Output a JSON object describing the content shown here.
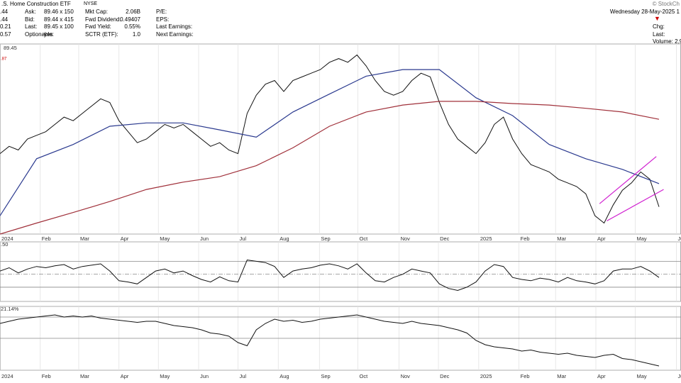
{
  "header": {
    "title": ".S. Home Construction ETF",
    "exchange": "NYSE",
    "copyright": "© StockCh",
    "date": "Wednesday  28-May-2025  1",
    "left_values": [
      ".44",
      ".44",
      "0.21",
      "0.57"
    ],
    "quote": [
      [
        "Ask:",
        "89.46 x 150"
      ],
      [
        "Bid:",
        "89.44 x 415"
      ],
      [
        "Last:",
        "89.45 x 100"
      ],
      [
        "Optionable:",
        "yes"
      ]
    ],
    "stats": [
      [
        "Mkt Cap:",
        "2.06B"
      ],
      [
        "Fwd Dividend:",
        "0.49407"
      ],
      [
        "Fwd Yield:",
        "0.55%"
      ],
      [
        "SCTR (ETF):",
        "1.0"
      ]
    ],
    "earnings": [
      "P/E:",
      "EPS:",
      "Last Earnings:",
      "Next Earnings:"
    ],
    "right": [
      "Chg:",
      "Last:",
      "Volume: 2,9"
    ]
  },
  "chart_data": [
    {
      "type": "line",
      "price_label": "89.45",
      "sub_label": ".87",
      "x": [
        0,
        1,
        2,
        3,
        4,
        5,
        6,
        7,
        8,
        9,
        10,
        11,
        12,
        13,
        14,
        15,
        16,
        17,
        18,
        19,
        20,
        21,
        22,
        23,
        24,
        25,
        26,
        27,
        28,
        29,
        30,
        31,
        32,
        33,
        34,
        35,
        36,
        37,
        38,
        39,
        40,
        41,
        42,
        43,
        44,
        45,
        46,
        47,
        48,
        49,
        50,
        51,
        52,
        53,
        54,
        55,
        56,
        57,
        58,
        59,
        60,
        61,
        62,
        63,
        64,
        65,
        66,
        67,
        68,
        69,
        70,
        71,
        72
      ],
      "xlim": [
        0,
        74.4
      ],
      "ylim": [
        82,
        134
      ],
      "xticks": [
        {
          "value": 0,
          "label": "2024"
        },
        {
          "value": 4.4,
          "label": "Feb"
        },
        {
          "value": 8.6,
          "label": "Mar"
        },
        {
          "value": 13,
          "label": "Apr"
        },
        {
          "value": 17.3,
          "label": "May"
        },
        {
          "value": 21.7,
          "label": "Jun"
        },
        {
          "value": 26,
          "label": "Jul"
        },
        {
          "value": 30.4,
          "label": "Aug"
        },
        {
          "value": 34.9,
          "label": "Sep"
        },
        {
          "value": 39.1,
          "label": "Oct"
        },
        {
          "value": 43.6,
          "label": "Nov"
        },
        {
          "value": 47.9,
          "label": "Dec"
        },
        {
          "value": 52.3,
          "label": "2025"
        },
        {
          "value": 56.7,
          "label": "Feb"
        },
        {
          "value": 60.7,
          "label": "Mar"
        },
        {
          "value": 65.1,
          "label": "Apr"
        },
        {
          "value": 69.4,
          "label": "May"
        },
        {
          "value": 73.9,
          "label": "Jun"
        }
      ],
      "series": [
        {
          "color": "#111111",
          "values": [
            104,
            106,
            105,
            108,
            109,
            110,
            112,
            114,
            113,
            115,
            117,
            119,
            118,
            113,
            110,
            107,
            108,
            110,
            112,
            111,
            112,
            110,
            108,
            106,
            107,
            105,
            104,
            115,
            120,
            123,
            124,
            121,
            124,
            125,
            126,
            127,
            129,
            130,
            129,
            131,
            128,
            124,
            121,
            120,
            121,
            124,
            126,
            125,
            118,
            112,
            108,
            106,
            104,
            107,
            112,
            114,
            108,
            104,
            101,
            100,
            99,
            97,
            96,
            95,
            93,
            87,
            85,
            90,
            94,
            96,
            99,
            97,
            89.45
          ]
        },
        {
          "color": "#2b3a8f",
          "x": [
            0,
            4,
            8,
            12,
            16,
            20,
            24,
            28,
            32,
            36,
            40,
            44,
            48,
            52,
            56,
            60,
            64,
            68,
            72
          ],
          "values": [
            87,
            102.6,
            106.5,
            111.5,
            112.4,
            112.4,
            110.5,
            108.5,
            115.4,
            120.3,
            125.2,
            127,
            127,
            119.3,
            114.4,
            106.5,
            102.6,
            99.7,
            95.8
          ]
        },
        {
          "color": "#a0303a",
          "x": [
            0,
            4,
            8,
            12,
            16,
            20,
            24,
            28,
            32,
            36,
            40,
            44,
            48,
            52,
            56,
            60,
            64,
            68,
            72
          ],
          "values": [
            82,
            85,
            87.9,
            90.9,
            94.2,
            96.2,
            97.7,
            100.7,
            105.6,
            111.5,
            115.4,
            117.3,
            118.3,
            118.3,
            117.7,
            117.3,
            116.4,
            115.4,
            113.4
          ]
        },
        {
          "color": "#d020d0",
          "x": [
            65.5,
            71.7
          ],
          "values": [
            90.3,
            103.2
          ]
        },
        {
          "color": "#d020d0",
          "x": [
            66.3,
            72.5
          ],
          "values": [
            85.6,
            94.2
          ]
        }
      ]
    },
    {
      "type": "line",
      "label": ".50",
      "xlim": [
        0,
        74.4
      ],
      "ylim": [
        8,
        100
      ],
      "reference_lines": [
        70,
        50,
        30
      ],
      "x": [
        0,
        1,
        2,
        3,
        4,
        5,
        6,
        7,
        8,
        9,
        10,
        11,
        12,
        13,
        14,
        15,
        16,
        17,
        18,
        19,
        20,
        21,
        22,
        23,
        24,
        25,
        26,
        27,
        28,
        29,
        30,
        31,
        32,
        33,
        34,
        35,
        36,
        37,
        38,
        39,
        40,
        41,
        42,
        43,
        44,
        45,
        46,
        47,
        48,
        49,
        50,
        51,
        52,
        53,
        54,
        55,
        56,
        57,
        58,
        59,
        60,
        61,
        62,
        63,
        64,
        65,
        66,
        67,
        68,
        69,
        70,
        71,
        72
      ],
      "series": [
        {
          "color": "#111111",
          "values": [
            55,
            60,
            52,
            58,
            62,
            60,
            63,
            65,
            58,
            62,
            64,
            66,
            55,
            40,
            38,
            35,
            45,
            55,
            58,
            52,
            55,
            48,
            42,
            38,
            46,
            40,
            38,
            72,
            70,
            68,
            62,
            45,
            55,
            58,
            60,
            64,
            66,
            63,
            58,
            66,
            52,
            40,
            38,
            45,
            50,
            58,
            55,
            52,
            35,
            28,
            25,
            30,
            38,
            55,
            65,
            62,
            45,
            42,
            40,
            44,
            42,
            38,
            45,
            40,
            38,
            35,
            40,
            55,
            58,
            58,
            62,
            55,
            45
          ]
        }
      ]
    },
    {
      "type": "line",
      "label": "21.14%",
      "xlim": [
        0,
        74.4
      ],
      "ylim": [
        -30,
        30
      ],
      "reference_lines": [
        20,
        0
      ],
      "x": [
        0,
        1,
        2,
        3,
        4,
        5,
        6,
        7,
        8,
        9,
        10,
        11,
        12,
        13,
        14,
        15,
        16,
        17,
        18,
        19,
        20,
        21,
        22,
        23,
        24,
        25,
        26,
        27,
        28,
        29,
        30,
        31,
        32,
        33,
        34,
        35,
        36,
        37,
        38,
        39,
        40,
        41,
        42,
        43,
        44,
        45,
        46,
        47,
        48,
        49,
        50,
        51,
        52,
        53,
        54,
        55,
        56,
        57,
        58,
        59,
        60,
        61,
        62,
        63,
        64,
        65,
        66,
        67,
        68,
        69,
        70,
        71,
        72
      ],
      "series": [
        {
          "color": "#111111",
          "values": [
            14,
            16,
            18,
            19,
            20,
            21,
            22,
            20,
            21,
            20,
            21,
            19,
            18,
            17,
            16,
            15,
            16,
            16,
            14,
            12,
            11,
            10,
            8,
            5,
            4,
            2,
            -4,
            -7,
            8,
            14,
            18,
            16,
            17,
            15,
            16,
            18,
            19,
            20,
            21,
            22,
            20,
            18,
            16,
            15,
            14,
            16,
            14,
            13,
            12,
            10,
            8,
            5,
            -2,
            -6,
            -8,
            -9,
            -10,
            -12,
            -11,
            -13,
            -14,
            -15,
            -14,
            -16,
            -17,
            -18,
            -16,
            -15,
            -19,
            -20,
            -22,
            -24,
            -26
          ]
        }
      ]
    }
  ]
}
